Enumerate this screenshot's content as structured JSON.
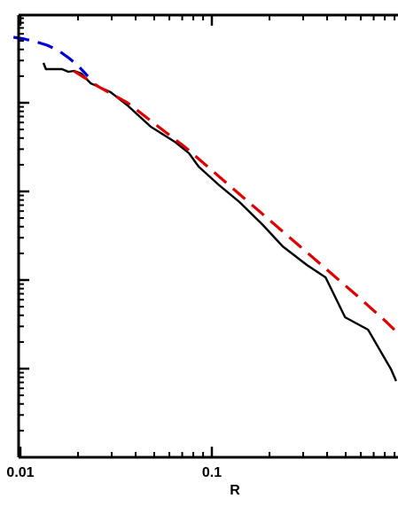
{
  "chart_data": {
    "type": "line",
    "title": "",
    "xlabel": "R",
    "ylabel": "",
    "xscale": "log",
    "yscale": "log",
    "xlim": [
      0.0092,
      0.92
    ],
    "ylim_decades": [
      0,
      4.7
    ],
    "x_tick_labels": [
      {
        "value": 0.01,
        "label": "0.01"
      },
      {
        "value": 0.1,
        "label": "0.1"
      }
    ],
    "y_tick_labels_visible": false,
    "grid": false,
    "series": [
      {
        "color": "#000000",
        "style": "solid",
        "x": [
          0.0132,
          0.0136,
          0.0155,
          0.0165,
          0.0178,
          0.0191,
          0.0208,
          0.0233,
          0.0257,
          0.0296,
          0.0363,
          0.048,
          0.064,
          0.076,
          0.0853,
          0.1079,
          0.1394,
          0.1849,
          0.2344,
          0.3135,
          0.3926,
          0.4966,
          0.6542,
          0.8643,
          0.9168
        ],
        "y": [
          4.45,
          4.38,
          4.38,
          4.38,
          4.35,
          4.36,
          4.33,
          4.22,
          4.18,
          4.12,
          3.97,
          3.73,
          3.56,
          3.43,
          3.28,
          3.08,
          2.88,
          2.62,
          2.38,
          2.17,
          2.03,
          1.58,
          1.44,
          0.99,
          0.86
        ]
      },
      {
        "color": "#e00000",
        "style": "dashed",
        "x": [
          0.019,
          0.0257,
          0.0363,
          0.0512,
          0.0725,
          0.1023,
          0.1445,
          0.2042,
          0.2884,
          0.4074,
          0.5754,
          0.8128,
          0.9168
        ],
        "y": [
          4.36,
          4.18,
          4.0,
          3.75,
          3.5,
          3.22,
          2.94,
          2.66,
          2.38,
          2.1,
          1.82,
          1.53,
          1.42
        ]
      },
      {
        "color": "#0000dd",
        "style": "dashed",
        "x": [
          0.0092,
          0.0105,
          0.012,
          0.0138,
          0.0158,
          0.0178,
          0.02,
          0.0225
        ],
        "y": [
          4.74,
          4.72,
          4.69,
          4.65,
          4.59,
          4.51,
          4.42,
          4.3
        ]
      }
    ]
  }
}
